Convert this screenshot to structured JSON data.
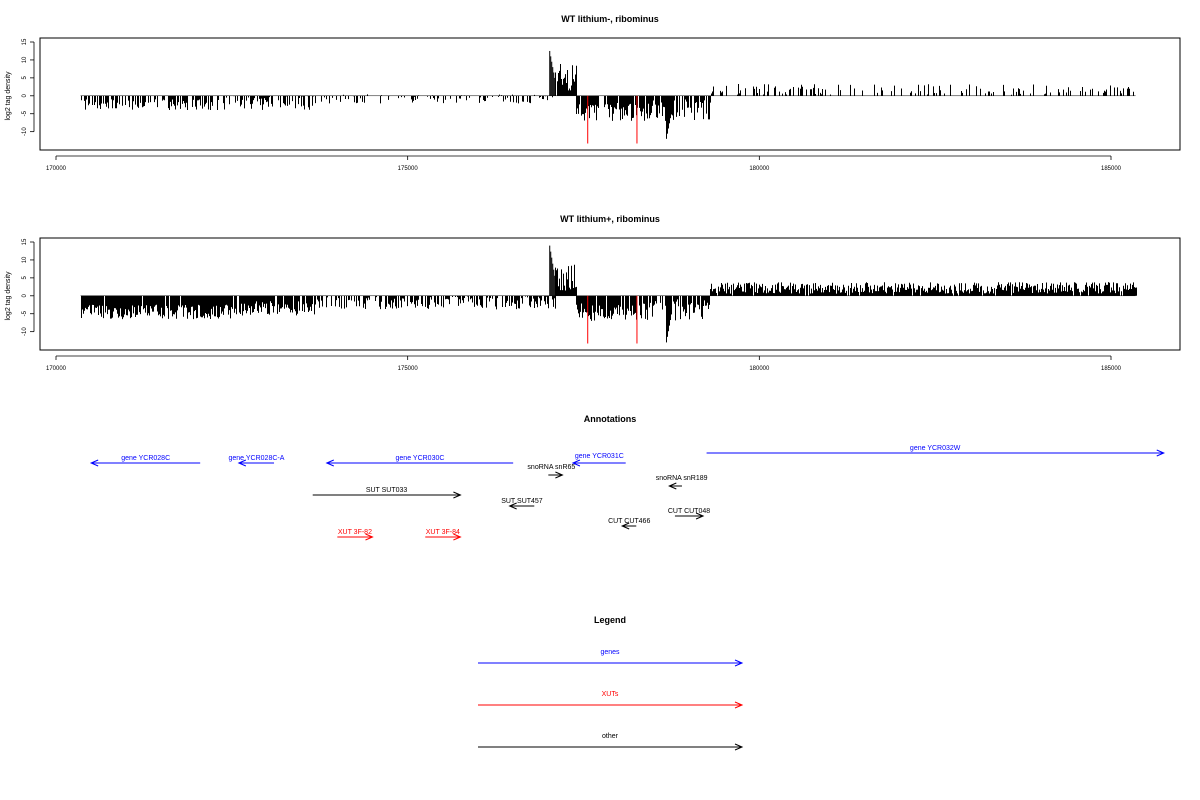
{
  "colors": {
    "genes": "#0000ff",
    "xuts": "#ff0000",
    "other": "#000000",
    "highlight": "#ff0000"
  },
  "chart_data": [
    {
      "type": "bar",
      "title": "WT lithium-, ribominus",
      "ylabel": "log2 tag density",
      "xlim": [
        169600,
        186000
      ],
      "ylim": [
        -14,
        15
      ],
      "xticks": [
        "170000",
        "175000",
        "180000",
        "185000"
      ],
      "yticks": [
        "15",
        "10",
        "5",
        "0",
        "-5",
        "-10"
      ],
      "segments": [
        {
          "x_start": 170350,
          "x_end": 172400,
          "mean": -2.5,
          "amp": 1.5,
          "density": 0.55
        },
        {
          "x_start": 172400,
          "x_end": 173700,
          "mean": -2.0,
          "amp": 2.0,
          "density": 0.5
        },
        {
          "x_start": 173700,
          "x_end": 177100,
          "mean": -0.9,
          "amp": 1.3,
          "density": 0.3
        },
        {
          "x_start": 177100,
          "x_end": 177400,
          "mean": 5.0,
          "amp": 4.0,
          "density": 0.9
        },
        {
          "x_start": 177400,
          "x_end": 178400,
          "mean": -4.5,
          "amp": 2.5,
          "density": 0.85
        },
        {
          "x_start": 178400,
          "x_end": 179300,
          "mean": -4.0,
          "amp": 3.0,
          "density": 0.7
        },
        {
          "x_start": 179300,
          "x_end": 185350,
          "mean": 1.8,
          "amp": 1.5,
          "density": 0.3
        }
      ],
      "peaks": [
        {
          "x": 177020,
          "y": 12.5
        },
        {
          "x": 178680,
          "y": -12.0
        }
      ],
      "highlights": [
        {
          "x": 177560,
          "y": -13.3
        },
        {
          "x": 178260,
          "y": -13.3
        }
      ]
    },
    {
      "type": "bar",
      "title": "WT lithium+, ribominus",
      "ylabel": "log2 tag density",
      "xlim": [
        169600,
        186000
      ],
      "ylim": [
        -14,
        15
      ],
      "xticks": [
        "170000",
        "175000",
        "180000",
        "185000"
      ],
      "yticks": [
        "15",
        "10",
        "5",
        "0",
        "-5",
        "-10"
      ],
      "segments": [
        {
          "x_start": 170350,
          "x_end": 172500,
          "mean": -4.5,
          "amp": 2.0,
          "density": 0.95
        },
        {
          "x_start": 172500,
          "x_end": 173700,
          "mean": -3.5,
          "amp": 2.0,
          "density": 0.85
        },
        {
          "x_start": 173700,
          "x_end": 177100,
          "mean": -2.0,
          "amp": 1.8,
          "density": 0.6
        },
        {
          "x_start": 177100,
          "x_end": 177400,
          "mean": 5.0,
          "amp": 4.0,
          "density": 0.9
        },
        {
          "x_start": 177400,
          "x_end": 178400,
          "mean": -4.5,
          "amp": 2.5,
          "density": 0.85
        },
        {
          "x_start": 178400,
          "x_end": 179300,
          "mean": -4.0,
          "amp": 3.0,
          "density": 0.7
        },
        {
          "x_start": 179300,
          "x_end": 185350,
          "mean": 2.2,
          "amp": 1.6,
          "density": 0.95
        }
      ],
      "peaks": [
        {
          "x": 177020,
          "y": 14.0
        },
        {
          "x": 178680,
          "y": -13.0
        }
      ],
      "highlights": [
        {
          "x": 177560,
          "y": -13.3
        },
        {
          "x": 178260,
          "y": -13.3
        }
      ]
    }
  ],
  "annotations": {
    "title": "Annotations",
    "features": [
      {
        "label": "gene YCR028C",
        "class": "genes",
        "strand": "-",
        "start": 170500,
        "end": 172050
      },
      {
        "label": "gene YCR028C-A",
        "class": "genes",
        "strand": "-",
        "start": 172600,
        "end": 173100
      },
      {
        "label": "gene YCR030C",
        "class": "genes",
        "strand": "-",
        "start": 173850,
        "end": 176500
      },
      {
        "label": "gene YCR031C",
        "class": "genes",
        "strand": "-",
        "start": 177350,
        "end": 178100
      },
      {
        "label": "gene YCR032W",
        "class": "genes",
        "strand": "+",
        "start": 179250,
        "end": 185750
      },
      {
        "label": "snoRNA snR65",
        "class": "other",
        "strand": "+",
        "start": 177000,
        "end": 177200
      },
      {
        "label": "snoRNA snR189",
        "class": "other",
        "strand": "-",
        "start": 178720,
        "end": 178900
      },
      {
        "label": "SUT SUT033",
        "class": "other",
        "strand": "+",
        "start": 173650,
        "end": 175750
      },
      {
        "label": "SUT SUT457",
        "class": "other",
        "strand": "-",
        "start": 176450,
        "end": 176800
      },
      {
        "label": "CUT CUT466",
        "class": "other",
        "strand": "-",
        "start": 178050,
        "end": 178250
      },
      {
        "label": "CUT CUT048",
        "class": "other",
        "strand": "+",
        "start": 178800,
        "end": 179200
      },
      {
        "label": "XUT 3F-82",
        "class": "xuts",
        "strand": "+",
        "start": 174000,
        "end": 174500
      },
      {
        "label": "XUT 3F-84",
        "class": "xuts",
        "strand": "+",
        "start": 175250,
        "end": 175750
      }
    ]
  },
  "legend": {
    "title": "Legend",
    "items": [
      {
        "label": "genes",
        "class": "genes"
      },
      {
        "label": "XUTs",
        "class": "xuts"
      },
      {
        "label": "other",
        "class": "other"
      }
    ]
  }
}
